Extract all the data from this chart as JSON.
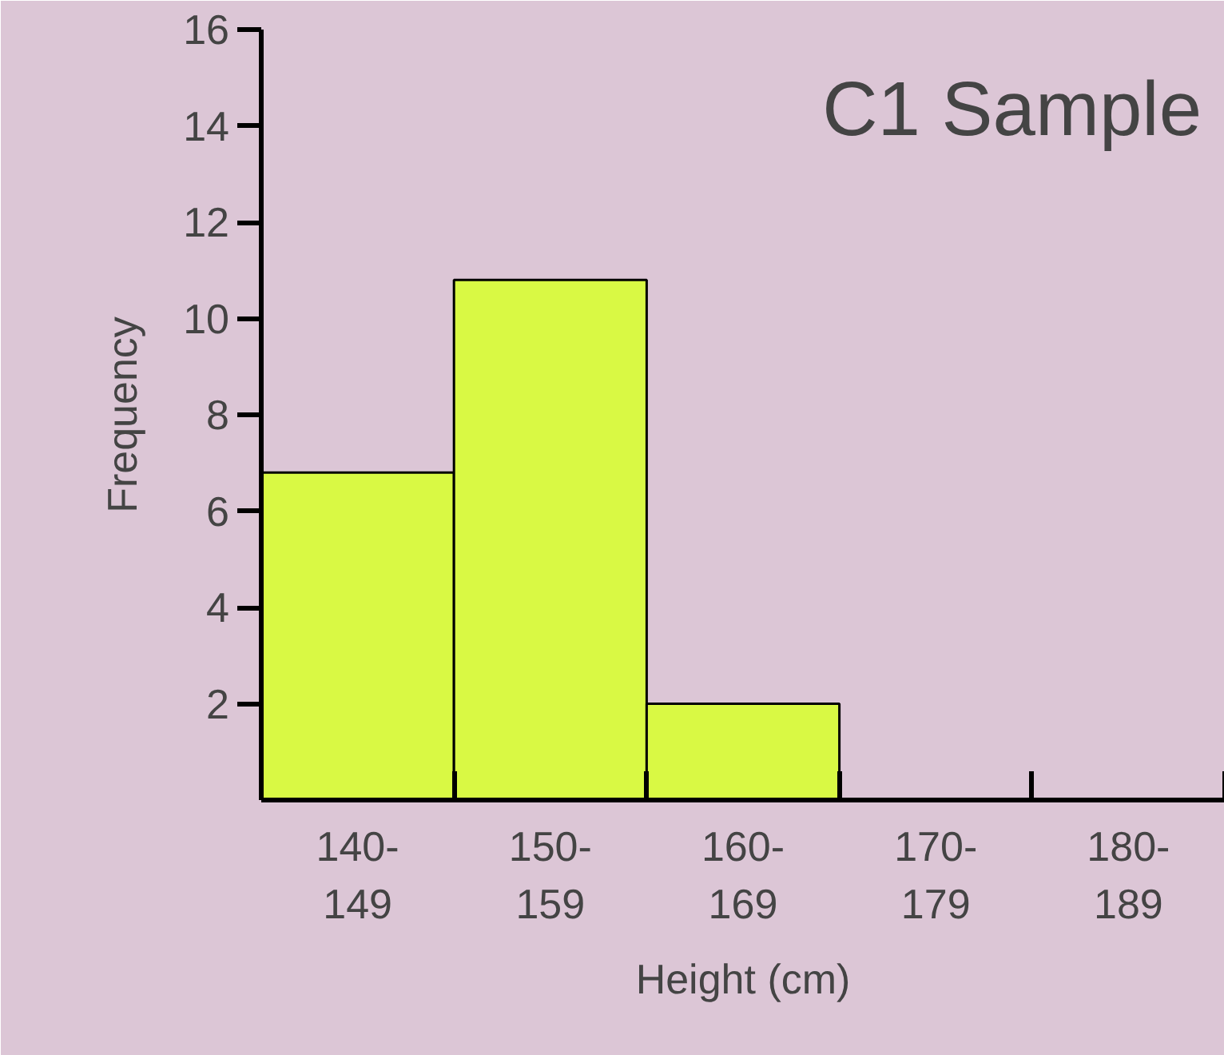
{
  "chart_data": {
    "type": "bar",
    "title": "C1 Sample",
    "xlabel": "Height (cm)",
    "ylabel": "Frequency",
    "categories": [
      "140-\n149",
      "150-\n159",
      "160-\n169",
      "170-\n179",
      "180-\n189"
    ],
    "values": [
      6.8,
      10.8,
      2,
      0,
      0
    ],
    "color": "#d9f944",
    "ylim": [
      0,
      16
    ],
    "yticks": [
      2,
      4,
      6,
      8,
      10,
      12,
      14,
      16
    ],
    "grid": false
  }
}
